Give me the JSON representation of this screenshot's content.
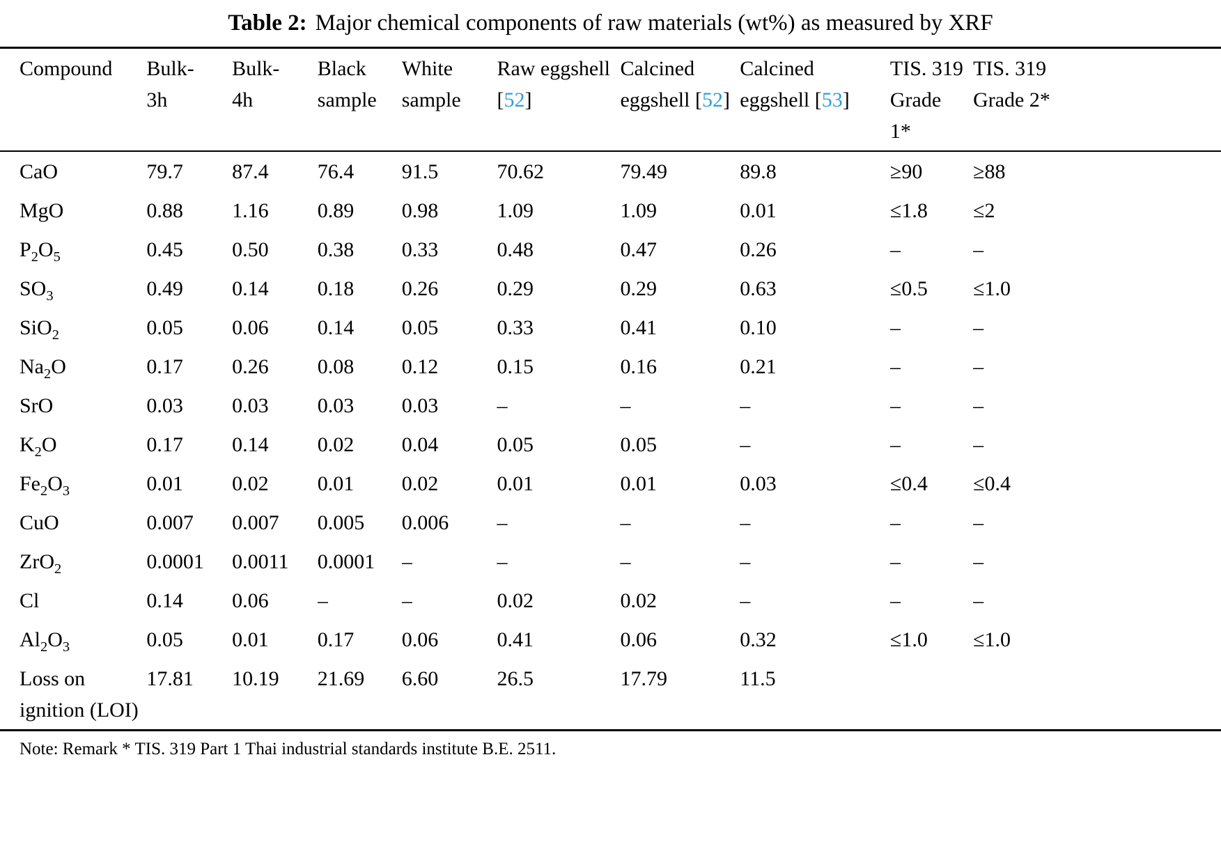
{
  "title": {
    "label": "Table 2:",
    "text": "Major chemical components of raw materials (wt%) as measured by XRF"
  },
  "table": {
    "columns": [
      {
        "label": "Compound"
      },
      {
        "label": "Bulk-3h"
      },
      {
        "label": "Bulk-4h"
      },
      {
        "label": "Black sample"
      },
      {
        "label": "White sample"
      },
      {
        "label": "Raw eggshell",
        "citation": "52"
      },
      {
        "label": "Calcined eggshell",
        "citation": "52"
      },
      {
        "label": "Calcined eggshell",
        "citation": "53"
      },
      {
        "label": "TIS. 319 Grade 1*"
      },
      {
        "label": "TIS. 319 Grade 2*"
      }
    ],
    "rows": [
      {
        "compound": "CaO",
        "values": [
          "79.7",
          "87.4",
          "76.4",
          "91.5",
          "70.62",
          "79.49",
          "89.8",
          "≥90",
          "≥88"
        ]
      },
      {
        "compound": "MgO",
        "values": [
          "0.88",
          "1.16",
          "0.89",
          "0.98",
          "1.09",
          "1.09",
          "0.01",
          "≤1.8",
          "≤2"
        ]
      },
      {
        "compound": "P2O5",
        "values": [
          "0.45",
          "0.50",
          "0.38",
          "0.33",
          "0.48",
          "0.47",
          "0.26",
          "–",
          "–"
        ]
      },
      {
        "compound": "SO3",
        "values": [
          "0.49",
          "0.14",
          "0.18",
          "0.26",
          "0.29",
          "0.29",
          "0.63",
          "≤0.5",
          "≤1.0"
        ]
      },
      {
        "compound": "SiO2",
        "values": [
          "0.05",
          "0.06",
          "0.14",
          "0.05",
          "0.33",
          "0.41",
          "0.10",
          "–",
          "–"
        ]
      },
      {
        "compound": "Na2O",
        "values": [
          "0.17",
          "0.26",
          "0.08",
          "0.12",
          "0.15",
          "0.16",
          "0.21",
          "–",
          "–"
        ]
      },
      {
        "compound": "SrO",
        "values": [
          "0.03",
          "0.03",
          "0.03",
          "0.03",
          "–",
          "–",
          "–",
          "–",
          "–"
        ]
      },
      {
        "compound": "K2O",
        "values": [
          "0.17",
          "0.14",
          "0.02",
          "0.04",
          "0.05",
          "0.05",
          "–",
          "–",
          "–"
        ]
      },
      {
        "compound": "Fe2O3",
        "values": [
          "0.01",
          "0.02",
          "0.01",
          "0.02",
          "0.01",
          "0.01",
          "0.03",
          "≤0.4",
          "≤0.4"
        ]
      },
      {
        "compound": "CuO",
        "values": [
          "0.007",
          "0.007",
          "0.005",
          "0.006",
          "–",
          "–",
          "–",
          "–",
          "–"
        ]
      },
      {
        "compound": "ZrO2",
        "values": [
          "0.0001",
          "0.0011",
          "0.0001",
          "–",
          "–",
          "–",
          "–",
          "–",
          "–"
        ]
      },
      {
        "compound": "Cl",
        "values": [
          "0.14",
          "0.06",
          "–",
          "–",
          "0.02",
          "0.02",
          "–",
          "–",
          "–"
        ]
      },
      {
        "compound": "Al2O3",
        "values": [
          "0.05",
          "0.01",
          "0.17",
          "0.06",
          "0.41",
          "0.06",
          "0.32",
          "≤1.0",
          "≤1.0"
        ]
      },
      {
        "compound": "Loss on ignition (LOI)",
        "values": [
          "17.81",
          "10.19",
          "21.69",
          "6.60",
          "26.5",
          "17.79",
          "11.5",
          "",
          ""
        ]
      }
    ]
  },
  "note": "Note: Remark * TIS. 319 Part 1 Thai industrial standards institute B.E. 2511.",
  "colors": {
    "text": "#000000",
    "citation": "#2E9FD9"
  }
}
